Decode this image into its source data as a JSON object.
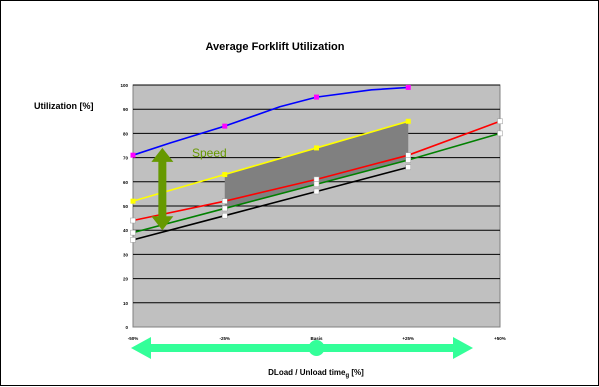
{
  "chart_data": {
    "type": "line",
    "title": "Average Forklift Utilization",
    "ylabel": "Utilization  [%]",
    "xlabel": "DLoad / Unload time",
    "xlabel_subscript": "g",
    "xlabel_suffix": " [%]",
    "categories": [
      "-50%",
      "-25%",
      "Basis",
      "+25%",
      "+50%"
    ],
    "y_ticks": [
      "0",
      "10",
      "20",
      "30",
      "40",
      "50",
      "60",
      "70",
      "80",
      "90",
      "100"
    ],
    "ylim": [
      0,
      100
    ],
    "grid": true,
    "series": [
      {
        "color": "#0000ff",
        "marker_color": "#ff00ff",
        "points": [
          [
            -50,
            71
          ],
          [
            -40,
            76
          ],
          [
            -25,
            83
          ],
          [
            -10,
            91
          ],
          [
            0,
            95
          ],
          [
            15,
            98
          ],
          [
            25,
            99
          ]
        ]
      },
      {
        "color": "#ffff00",
        "marker_color": "#ffff00",
        "points": [
          [
            -50,
            52
          ],
          [
            -25,
            63
          ],
          [
            0,
            74
          ],
          [
            25,
            85
          ]
        ]
      },
      {
        "color": "#ff0000",
        "marker_color": "#ffffff",
        "points": [
          [
            -50,
            44
          ],
          [
            -25,
            52
          ],
          [
            0,
            61
          ],
          [
            25,
            71
          ],
          [
            50,
            85
          ]
        ]
      },
      {
        "color": "#008000",
        "marker_color": "#ffffff",
        "points": [
          [
            -50,
            39
          ],
          [
            -25,
            49
          ],
          [
            0,
            59
          ],
          [
            25,
            69
          ],
          [
            50,
            80
          ]
        ]
      },
      {
        "color": "#000000",
        "marker_color": "#ffffff",
        "points": [
          [
            -50,
            36
          ],
          [
            -25,
            46
          ],
          [
            0,
            56
          ],
          [
            25,
            66
          ]
        ]
      }
    ],
    "shaded_band": {
      "color": "#808080",
      "x_range": [
        -25,
        25
      ],
      "upper": [
        63,
        85
      ],
      "lower": [
        49,
        69
      ]
    },
    "annotation": {
      "text": "Speed",
      "color": "#669900",
      "arrow_x": -42,
      "arrow_range": [
        40,
        74
      ]
    },
    "axis_arrow": {
      "color": "#33ff99"
    }
  },
  "colors": {
    "plot_background": "#c0c0c0",
    "gridline": "#000000"
  }
}
